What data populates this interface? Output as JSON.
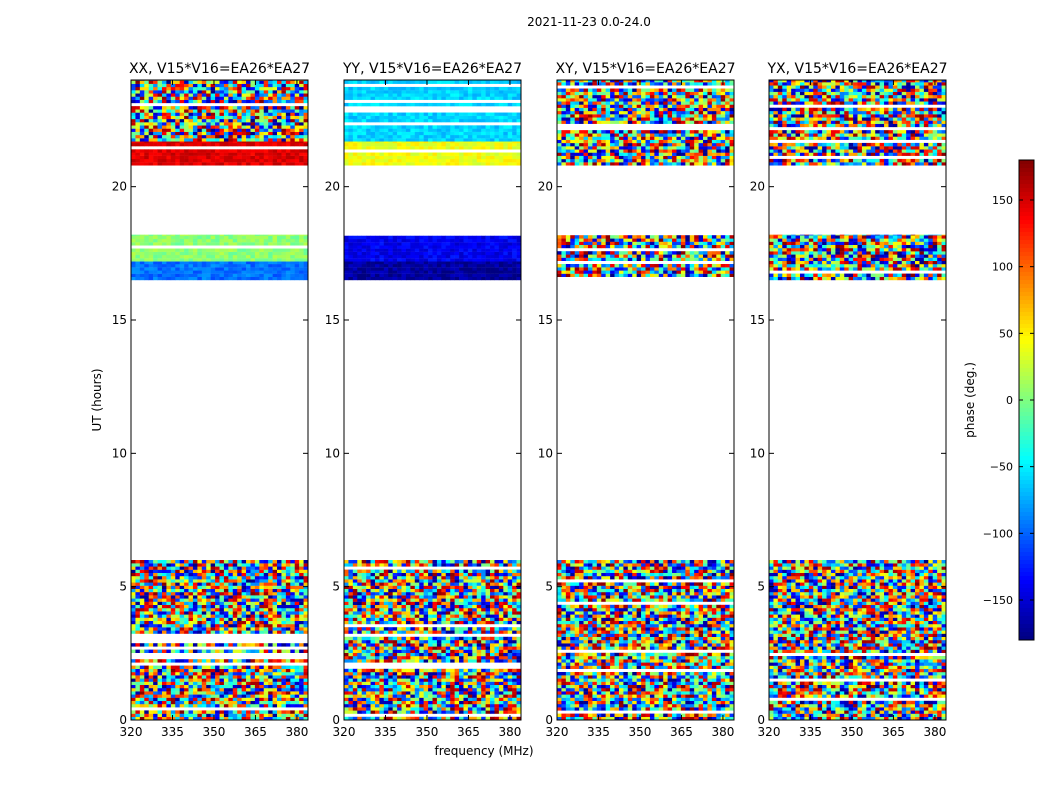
{
  "suptitle": "2021-11-23 0.0-24.0",
  "chart_data": {
    "type": "heatmap",
    "title": "2021-11-23 0.0-24.0",
    "xlabel": "frequency (MHz)",
    "ylabel": "UT (hours)",
    "xlim": [
      320,
      384
    ],
    "ylim": [
      0,
      24
    ],
    "xticks": [
      320,
      335,
      350,
      365,
      380
    ],
    "yticks": [
      0,
      5,
      10,
      15,
      20
    ],
    "colormap": "jet",
    "colorbar": {
      "label": "phase (deg.)",
      "range": [
        -180,
        180
      ],
      "ticks": [
        -150,
        -100,
        -50,
        0,
        50,
        100,
        150
      ]
    },
    "panels": [
      {
        "title": "XX, V15*V16=EA26*EA27",
        "data_blocks": [
          {
            "t": [
              0.0,
              6.0
            ],
            "mode": "noise"
          },
          {
            "t": [
              16.5,
              17.2
            ],
            "mode": "uniform",
            "phase": -95
          },
          {
            "t": [
              17.2,
              18.2
            ],
            "mode": "uniform",
            "phase": 5
          },
          {
            "t": [
              20.8,
              21.7
            ],
            "mode": "uniform",
            "phase": 145
          },
          {
            "t": [
              21.7,
              24.0
            ],
            "mode": "noise"
          }
        ]
      },
      {
        "title": "YY, V15*V16=EA26*EA27",
        "data_blocks": [
          {
            "t": [
              0.0,
              6.0
            ],
            "mode": "noise"
          },
          {
            "t": [
              16.5,
              17.2
            ],
            "mode": "uniform",
            "phase": -170
          },
          {
            "t": [
              17.2,
              18.2
            ],
            "mode": "uniform",
            "phase": -140
          },
          {
            "t": [
              20.8,
              21.7
            ],
            "mode": "uniform",
            "phase": 40
          },
          {
            "t": [
              21.7,
              24.0
            ],
            "mode": "uniform",
            "phase": -60
          }
        ]
      },
      {
        "title": "XY, V15*V16=EA26*EA27",
        "data_blocks": [
          {
            "t": [
              0.0,
              6.0
            ],
            "mode": "noise"
          },
          {
            "t": [
              16.5,
              18.2
            ],
            "mode": "noise"
          },
          {
            "t": [
              20.8,
              24.0
            ],
            "mode": "noise"
          }
        ]
      },
      {
        "title": "YX, V15*V16=EA26*EA27",
        "data_blocks": [
          {
            "t": [
              0.0,
              6.0
            ],
            "mode": "noise"
          },
          {
            "t": [
              16.5,
              18.2
            ],
            "mode": "noise"
          },
          {
            "t": [
              20.8,
              24.0
            ],
            "mode": "noise"
          }
        ]
      }
    ]
  }
}
